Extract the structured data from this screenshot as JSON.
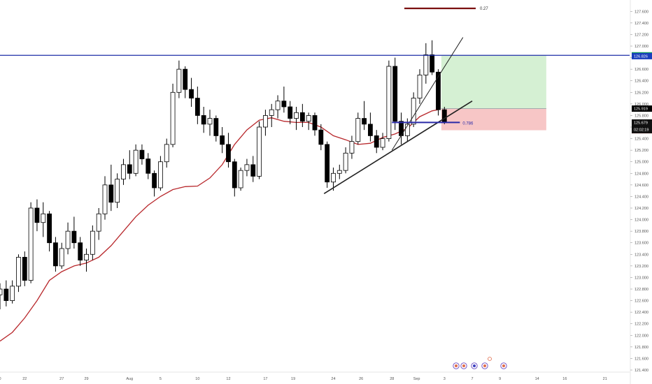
{
  "chart_data": {
    "type": "candlestick",
    "grid": false,
    "ylim": [
      121.4,
      127.7
    ],
    "y_ticks": [
      "127.600",
      "127.400",
      "127.200",
      "127.000",
      "126.800",
      "126.600",
      "126.400",
      "126.200",
      "126.000",
      "125.800",
      "125.600",
      "125.400",
      "125.200",
      "125.000",
      "124.800",
      "124.600",
      "124.400",
      "124.200",
      "124.000",
      "123.800",
      "123.600",
      "123.400",
      "123.200",
      "123.000",
      "122.800",
      "122.600",
      "122.400",
      "122.200",
      "122.000",
      "121.800",
      "121.600",
      "121.400"
    ],
    "x_ticks": [
      {
        "label": "0",
        "day": 0
      },
      {
        "label": "22",
        "day": 4
      },
      {
        "label": "27",
        "day": 10
      },
      {
        "label": "29",
        "day": 14
      },
      {
        "label": "Aug",
        "day": 21
      },
      {
        "label": "5",
        "day": 26
      },
      {
        "label": "10",
        "day": 32
      },
      {
        "label": "12",
        "day": 37
      },
      {
        "label": "17",
        "day": 43
      },
      {
        "label": "19",
        "day": 47.5
      },
      {
        "label": "24",
        "day": 54
      },
      {
        "label": "26",
        "day": 58.5
      },
      {
        "label": "28",
        "day": 63.5
      },
      {
        "label": "Sep",
        "day": 67.5
      },
      {
        "label": "3",
        "day": 72
      },
      {
        "label": "7",
        "day": 76.5
      },
      {
        "label": "9",
        "day": 81
      },
      {
        "label": "14",
        "day": 87
      },
      {
        "label": "16",
        "day": 91.5
      },
      {
        "label": "21",
        "day": 98
      }
    ],
    "x_range": [
      0,
      102
    ],
    "ohlc": [
      [
        122.7,
        122.9,
        122.45,
        122.8
      ],
      [
        122.8,
        122.95,
        122.5,
        122.6
      ],
      [
        122.6,
        122.95,
        122.55,
        122.85
      ],
      [
        122.85,
        123.4,
        122.75,
        123.35
      ],
      [
        123.35,
        123.45,
        122.85,
        122.95
      ],
      [
        122.95,
        124.3,
        122.9,
        124.2
      ],
      [
        124.2,
        124.35,
        123.8,
        123.95
      ],
      [
        123.95,
        124.3,
        123.7,
        124.1
      ],
      [
        124.1,
        124.15,
        123.45,
        123.6
      ],
      [
        123.6,
        123.7,
        123.1,
        123.2
      ],
      [
        123.2,
        123.6,
        123.15,
        123.5
      ],
      [
        123.5,
        123.95,
        123.4,
        123.8
      ],
      [
        123.8,
        124.05,
        123.5,
        123.6
      ],
      [
        123.6,
        123.7,
        123.2,
        123.3
      ],
      [
        123.3,
        123.5,
        123.1,
        123.4
      ],
      [
        123.4,
        123.9,
        123.3,
        123.8
      ],
      [
        123.8,
        124.2,
        123.65,
        124.1
      ],
      [
        124.1,
        124.75,
        124.0,
        124.6
      ],
      [
        124.6,
        124.95,
        124.15,
        124.3
      ],
      [
        124.3,
        124.8,
        124.2,
        124.7
      ],
      [
        124.7,
        125.05,
        124.6,
        124.95
      ],
      [
        124.95,
        125.2,
        124.7,
        124.8
      ],
      [
        124.8,
        125.3,
        124.75,
        125.2
      ],
      [
        125.2,
        125.3,
        124.95,
        125.05
      ],
      [
        125.05,
        125.15,
        124.7,
        124.8
      ],
      [
        124.8,
        124.85,
        124.4,
        124.55
      ],
      [
        124.55,
        125.1,
        124.5,
        125.0
      ],
      [
        125.0,
        125.4,
        124.9,
        125.3
      ],
      [
        125.3,
        126.35,
        125.25,
        126.2
      ],
      [
        126.2,
        126.75,
        126.1,
        126.6
      ],
      [
        126.6,
        126.65,
        126.1,
        126.25
      ],
      [
        126.25,
        126.45,
        125.95,
        126.1
      ],
      [
        126.1,
        126.3,
        125.65,
        125.8
      ],
      [
        125.8,
        125.95,
        125.5,
        125.65
      ],
      [
        125.65,
        125.9,
        125.45,
        125.75
      ],
      [
        125.75,
        125.8,
        125.35,
        125.45
      ],
      [
        125.45,
        125.6,
        125.15,
        125.3
      ],
      [
        125.3,
        125.5,
        124.9,
        125.0
      ],
      [
        125.0,
        125.05,
        124.4,
        124.55
      ],
      [
        124.55,
        124.9,
        124.5,
        124.85
      ],
      [
        124.85,
        125.05,
        124.75,
        124.95
      ],
      [
        124.95,
        125.1,
        124.65,
        124.75
      ],
      [
        124.75,
        125.7,
        124.7,
        125.6
      ],
      [
        125.6,
        125.9,
        125.45,
        125.8
      ],
      [
        125.8,
        126.0,
        125.6,
        125.9
      ],
      [
        125.9,
        126.15,
        125.75,
        126.05
      ],
      [
        126.05,
        126.3,
        125.85,
        125.95
      ],
      [
        125.95,
        126.05,
        125.65,
        125.75
      ],
      [
        125.75,
        125.95,
        125.55,
        125.85
      ],
      [
        125.85,
        126.0,
        125.6,
        125.7
      ],
      [
        125.7,
        125.85,
        125.55,
        125.8
      ],
      [
        125.8,
        125.85,
        125.45,
        125.55
      ],
      [
        125.55,
        125.65,
        125.2,
        125.3
      ],
      [
        125.3,
        125.35,
        124.55,
        124.65
      ],
      [
        124.65,
        124.9,
        124.5,
        124.8
      ],
      [
        124.8,
        124.95,
        124.7,
        124.85
      ],
      [
        124.85,
        125.25,
        124.8,
        125.15
      ],
      [
        125.15,
        125.45,
        125.05,
        125.35
      ],
      [
        125.35,
        125.85,
        125.3,
        125.75
      ],
      [
        125.75,
        126.05,
        125.55,
        125.65
      ],
      [
        125.65,
        125.85,
        125.35,
        125.45
      ],
      [
        125.45,
        125.55,
        125.15,
        125.25
      ],
      [
        125.25,
        125.5,
        125.2,
        125.4
      ],
      [
        125.4,
        126.75,
        125.35,
        126.65
      ],
      [
        126.65,
        126.8,
        125.55,
        125.7
      ],
      [
        125.7,
        125.85,
        125.3,
        125.45
      ],
      [
        125.45,
        125.75,
        125.35,
        125.65
      ],
      [
        125.65,
        126.2,
        125.6,
        126.1
      ],
      [
        126.1,
        126.6,
        126.0,
        126.5
      ],
      [
        126.5,
        127.05,
        126.35,
        126.85
      ],
      [
        126.85,
        127.1,
        126.5,
        126.55
      ],
      [
        126.55,
        126.6,
        125.8,
        125.9
      ],
      [
        125.9,
        125.95,
        125.65,
        125.68
      ]
    ],
    "ema": [
      [
        0,
        121.9
      ],
      [
        2,
        122.05
      ],
      [
        4,
        122.3
      ],
      [
        6,
        122.6
      ],
      [
        8,
        122.95
      ],
      [
        10,
        123.1
      ],
      [
        12,
        123.2
      ],
      [
        14,
        123.25
      ],
      [
        16,
        123.35
      ],
      [
        18,
        123.55
      ],
      [
        20,
        123.8
      ],
      [
        22,
        124.05
      ],
      [
        24,
        124.25
      ],
      [
        26,
        124.4
      ],
      [
        28,
        124.52
      ],
      [
        30,
        124.57
      ],
      [
        32,
        124.58
      ],
      [
        34,
        124.72
      ],
      [
        36,
        124.95
      ],
      [
        38,
        125.3
      ],
      [
        40,
        125.55
      ],
      [
        42,
        125.72
      ],
      [
        44,
        125.76
      ],
      [
        46,
        125.7
      ],
      [
        48,
        125.68
      ],
      [
        50,
        125.68
      ],
      [
        52,
        125.6
      ],
      [
        54,
        125.45
      ],
      [
        56,
        125.38
      ],
      [
        58,
        125.3
      ],
      [
        60,
        125.32
      ],
      [
        62,
        125.42
      ],
      [
        64,
        125.48
      ],
      [
        66,
        125.58
      ],
      [
        68,
        125.78
      ],
      [
        70,
        125.88
      ],
      [
        71,
        125.9
      ]
    ],
    "horizontal_line": 126.84,
    "last_price": 125.679,
    "countdown": "02:02:19",
    "price_labels": [
      {
        "value": 126.84,
        "text": "126.840",
        "color": "#0f9d58"
      },
      {
        "value": 126.826,
        "text": "126.826",
        "color": "#1a3fbd"
      },
      {
        "value": 125.919,
        "text": "125.919",
        "color": "#000000"
      },
      {
        "value": 125.545,
        "text": "125.545",
        "color": "#e53935"
      }
    ],
    "position": {
      "entry": 125.919,
      "target": 126.84,
      "stop": 125.545,
      "x_start": 71.5,
      "x_end": 88.5
    },
    "fib_level": {
      "value": 125.68,
      "label": "0.786",
      "x_start": 63.5,
      "x_end": 74.5
    },
    "trendlines": [
      {
        "x1": 52.5,
        "y1": 124.45,
        "x2": 76.5,
        "y2": 126.05,
        "width": 1.6
      },
      {
        "x1": 63.5,
        "y1": 125.2,
        "x2": 75,
        "y2": 127.15,
        "width": 1
      }
    ],
    "legend_line": {
      "label": "0.27",
      "color": "#7b0f0f"
    },
    "colors": {
      "axis_text": "#555555",
      "candle": "#000000",
      "ema": "#b8282c",
      "hline": "#1e2ea8",
      "profit": "#d5f0d3",
      "loss": "#f7c6c6"
    },
    "event_badges": 5
  }
}
